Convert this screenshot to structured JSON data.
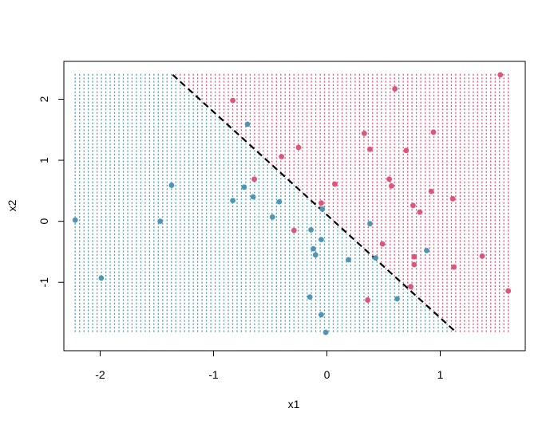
{
  "chart_data": {
    "type": "scatter",
    "title": "",
    "xlabel": "x1",
    "ylabel": "x2",
    "xlim": [
      -2.32,
      1.75
    ],
    "ylim": [
      -2.12,
      2.62
    ],
    "grid": false,
    "legend": "none",
    "x_ticks": [
      -2,
      -1,
      0,
      1
    ],
    "x_tick_labels": [
      "-2",
      "-1",
      "0",
      "1"
    ],
    "y_ticks": [
      -1,
      0,
      1,
      2
    ],
    "y_tick_labels": [
      "-1",
      "0",
      "1",
      "2"
    ],
    "background_grid": {
      "x_range": [
        -2.22,
        1.6
      ],
      "y_range": [
        -1.8,
        2.4
      ],
      "nx": 100,
      "ny": 75,
      "classes": [
        "blue",
        "red"
      ]
    },
    "decision_boundary": {
      "style": "dashed",
      "color": "#000000",
      "points": [
        [
          -1.36,
          2.4
        ],
        [
          1.13,
          -1.8
        ]
      ]
    },
    "colors": {
      "blue": "#4d96b8",
      "red": "#df5479",
      "blue_grid": "#4e9ba8",
      "red_grid": "#dc4f77"
    },
    "series": [
      {
        "color": "blue",
        "x": [
          -2.22,
          -1.99,
          -1.47,
          -1.37,
          -0.83,
          -0.73,
          -0.7,
          -0.65,
          -0.48,
          -0.42,
          -0.12,
          -0.1,
          -0.15,
          -0.14,
          -0.05,
          -0.05,
          -0.04,
          -0.01,
          0.19,
          0.38,
          0.43,
          0.62,
          0.88
        ],
        "y": [
          0.02,
          -0.93,
          0.0,
          0.59,
          0.34,
          0.56,
          1.59,
          0.4,
          0.07,
          0.32,
          -0.45,
          -0.55,
          -1.24,
          -0.14,
          -1.53,
          -0.3,
          0.2,
          -1.82,
          -0.63,
          -0.04,
          -0.6,
          -1.27,
          -0.48
        ]
      },
      {
        "color": "red",
        "x": [
          -0.83,
          -0.64,
          -0.4,
          -0.25,
          -0.29,
          -0.05,
          0.07,
          0.33,
          0.36,
          0.38,
          0.49,
          0.55,
          0.57,
          0.6,
          0.7,
          0.74,
          0.76,
          0.77,
          0.77,
          0.82,
          0.92,
          0.94,
          1.11,
          1.12,
          1.37,
          1.53,
          1.6
        ],
        "y": [
          1.98,
          0.69,
          1.06,
          1.21,
          -0.15,
          0.3,
          0.61,
          1.44,
          -1.29,
          1.18,
          -0.37,
          0.69,
          0.58,
          2.17,
          1.16,
          -1.07,
          0.26,
          -0.58,
          -0.71,
          0.15,
          0.49,
          1.46,
          0.37,
          -0.75,
          -0.57,
          2.4,
          -1.14
        ]
      }
    ]
  }
}
